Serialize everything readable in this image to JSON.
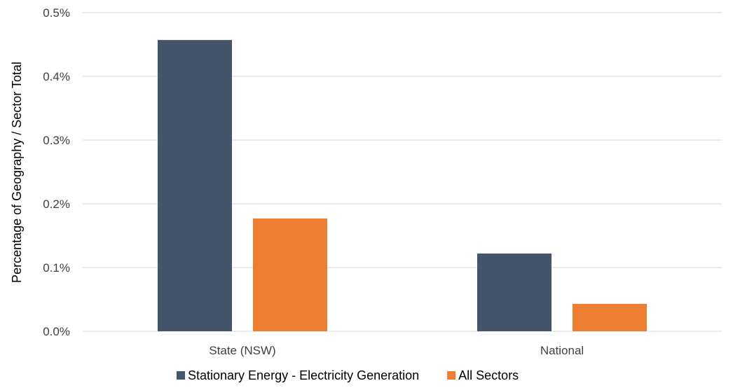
{
  "chart_data": {
    "type": "bar",
    "categories": [
      "State (NSW)",
      "National"
    ],
    "series": [
      {
        "name": "Stationary Energy - Electricity Generation",
        "values": [
          0.457,
          0.122
        ],
        "color": "#44546a"
      },
      {
        "name": "All Sectors",
        "values": [
          0.177,
          0.043
        ],
        "color": "#ed7d31"
      }
    ],
    "ylabel": "Percentage  of Geography  / Sector Total",
    "xlabel": "",
    "ylim": [
      0,
      0.5
    ],
    "yticks": [
      0.0,
      0.1,
      0.2,
      0.3,
      0.4,
      0.5
    ],
    "ytick_labels": [
      "0.0%",
      "0.1%",
      "0.2%",
      "0.3%",
      "0.4%",
      "0.5%"
    ],
    "grid": "horizontal",
    "legend_position": "bottom"
  }
}
